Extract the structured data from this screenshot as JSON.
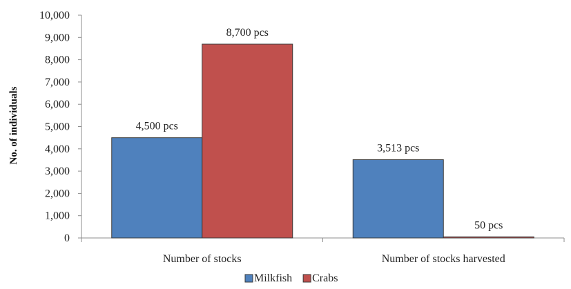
{
  "chart_data": {
    "type": "bar",
    "categories": [
      "Number of stocks",
      "Number of stocks harvested"
    ],
    "series": [
      {
        "name": "Milkfish",
        "color": "#4F81BD",
        "values": [
          4500,
          3513
        ],
        "data_labels": [
          "4,500 pcs",
          "3,513 pcs"
        ]
      },
      {
        "name": "Crabs",
        "color": "#C0504D",
        "values": [
          8700,
          50
        ],
        "data_labels": [
          "8,700 pcs",
          "50 pcs"
        ]
      }
    ],
    "title": "",
    "xlabel": "",
    "ylabel": "No. of individuals",
    "ylim": [
      0,
      10000
    ],
    "yticks": [
      0,
      1000,
      2000,
      3000,
      4000,
      5000,
      6000,
      7000,
      8000,
      9000,
      10000
    ],
    "ytick_labels": [
      "0",
      "1,000",
      "2,000",
      "3,000",
      "4,000",
      "5,000",
      "6,000",
      "7,000",
      "8,000",
      "9,000",
      "10,000"
    ],
    "grid": false,
    "legend_position": "bottom"
  }
}
